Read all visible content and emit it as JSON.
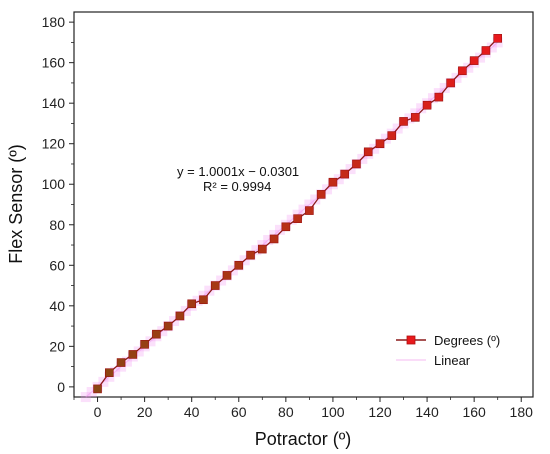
{
  "chart_data": {
    "type": "scatter",
    "title": "",
    "xlabel": "Potractor (º)",
    "ylabel": "Flex Sensor (º)",
    "xlim": [
      -10,
      185
    ],
    "ylim": [
      -5,
      185
    ],
    "xticks": [
      0,
      20,
      40,
      60,
      80,
      100,
      120,
      140,
      160,
      180
    ],
    "yticks": [
      0,
      20,
      40,
      60,
      80,
      100,
      120,
      140,
      160,
      180
    ],
    "grid": false,
    "legend_position": "bottom-right",
    "series": [
      {
        "name": "Degrees (º)",
        "kind": "line+marker",
        "color": "#e8191c",
        "x": [
          0,
          5,
          10,
          15,
          20,
          25,
          30,
          35,
          40,
          45,
          50,
          55,
          60,
          65,
          70,
          75,
          80,
          85,
          90,
          95,
          100,
          105,
          110,
          115,
          120,
          125,
          130,
          135,
          140,
          145,
          150,
          155,
          160,
          165,
          170
        ],
        "y": [
          -1,
          7,
          12,
          16,
          21,
          26,
          30,
          35,
          41,
          43,
          50,
          55,
          60,
          65,
          68,
          73,
          79,
          83,
          87,
          95,
          101,
          105,
          110,
          116,
          120,
          124,
          131,
          133,
          139,
          143,
          150,
          156,
          161,
          166,
          172
        ]
      },
      {
        "name": "Linear",
        "kind": "fit",
        "color": "#f090f0",
        "slope": 1.0001,
        "intercept": -0.0301,
        "x_range": [
          -5,
          170
        ]
      }
    ],
    "annotations": {
      "equation": "y = 1.0001x − 0.0301",
      "r_squared": "R² = 0.9994"
    }
  }
}
